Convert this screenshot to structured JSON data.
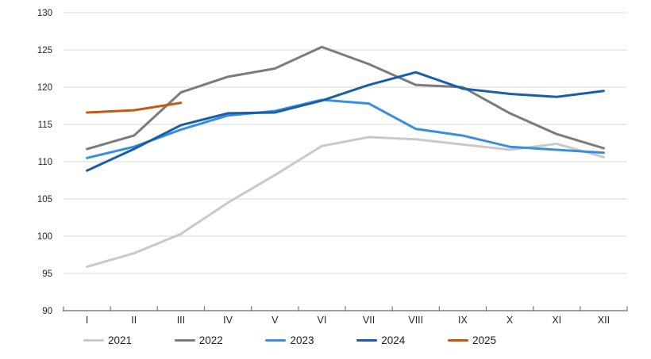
{
  "chart_data": {
    "type": "line",
    "title": "",
    "xlabel": "",
    "ylabel": "",
    "x_categories": [
      "I",
      "II",
      "III",
      "IV",
      "V",
      "VI",
      "VII",
      "VIII",
      "IX",
      "X",
      "XI",
      "XII"
    ],
    "ylim": [
      90,
      130
    ],
    "ytick_step": 5,
    "ytick_labels": [
      "90",
      "95",
      "100",
      "105",
      "110",
      "115",
      "120",
      "125",
      "130"
    ],
    "grid": true,
    "legend_position": "bottom",
    "series": [
      {
        "name": "2021",
        "color": "#c9c9c9",
        "values": [
          95.9,
          97.7,
          100.3,
          104.5,
          108.2,
          112.1,
          113.3,
          113.0,
          112.3,
          111.6,
          112.4,
          110.6
        ]
      },
      {
        "name": "2022",
        "color": "#7b7b7b",
        "values": [
          111.7,
          113.5,
          119.3,
          121.4,
          122.5,
          125.4,
          123.1,
          120.3,
          120.0,
          116.5,
          113.7,
          111.8
        ]
      },
      {
        "name": "2023",
        "color": "#3a8edd",
        "values": [
          110.5,
          112.0,
          114.3,
          116.2,
          116.8,
          118.3,
          117.8,
          114.4,
          113.5,
          112.0,
          111.6,
          111.2
        ]
      },
      {
        "name": "2024",
        "color": "#1a5dab",
        "values": [
          108.8,
          111.7,
          114.9,
          116.5,
          116.6,
          118.2,
          120.3,
          122.0,
          119.8,
          119.1,
          118.7,
          119.5
        ]
      },
      {
        "name": "2025",
        "color": "#c45911",
        "values": [
          116.6,
          116.9,
          117.9,
          null,
          null,
          null,
          null,
          null,
          null,
          null,
          null,
          null
        ]
      }
    ],
    "axis_style": {
      "axis_line_color": "#808080",
      "grid_color": "#d9d9d9",
      "label_color": "#262626"
    }
  }
}
